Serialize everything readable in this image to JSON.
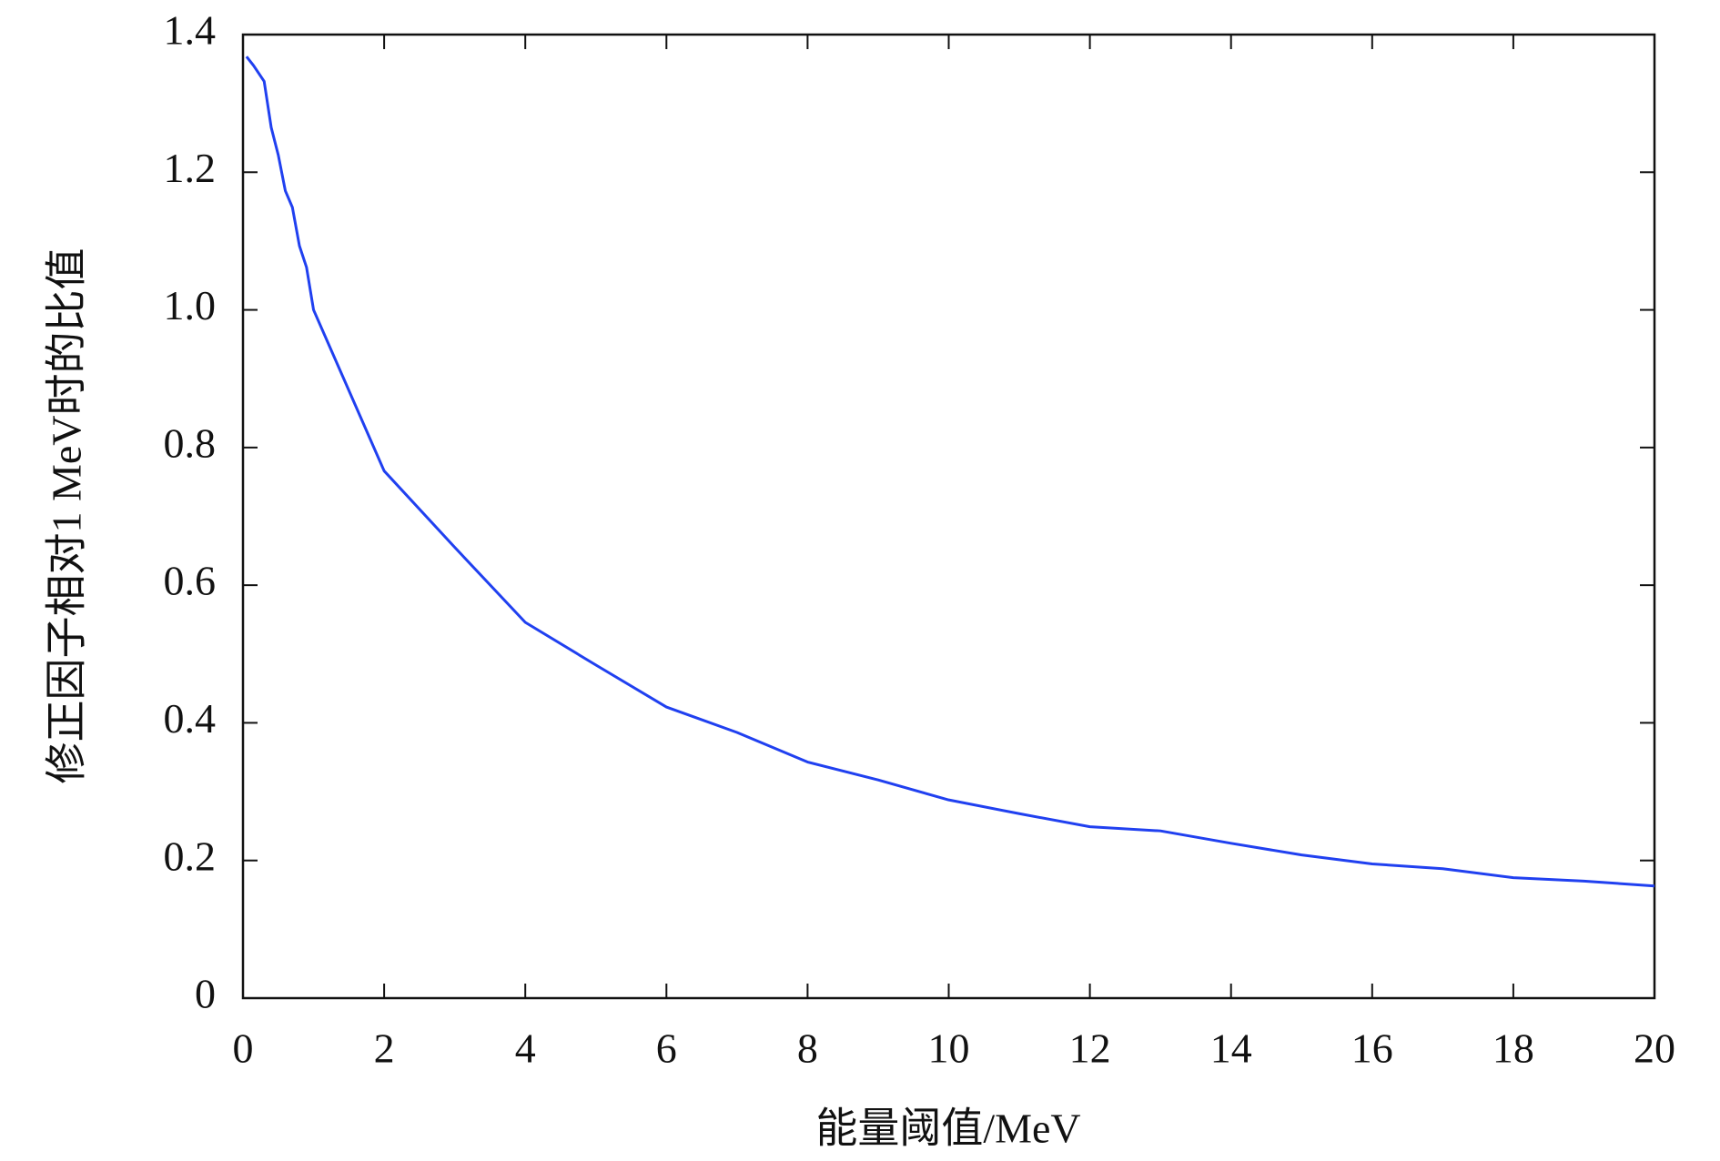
{
  "chart_data": {
    "type": "line",
    "xlabel": "能量阈值/MeV",
    "ylabel": "修正因子相对1 MeV时的比值",
    "x": [
      0.05,
      0.15,
      0.3,
      0.4,
      0.5,
      0.6,
      0.7,
      0.8,
      0.9,
      1,
      2,
      3,
      4,
      5,
      6,
      7,
      8,
      9,
      10,
      11,
      12,
      13,
      14,
      15,
      16,
      17,
      18,
      19,
      20
    ],
    "series": [
      {
        "color": "#2040f0",
        "values": [
          1.368,
          1.355,
          1.332,
          1.265,
          1.225,
          1.173,
          1.149,
          1.093,
          1.062,
          1.0,
          0.766,
          0.655,
          0.546,
          0.484,
          0.423,
          0.386,
          0.343,
          0.317,
          0.288,
          0.268,
          0.249,
          0.243,
          0.225,
          0.208,
          0.195,
          0.188,
          0.175,
          0.17,
          0.163
        ]
      }
    ],
    "xlim": [
      0,
      20
    ],
    "xticks": [
      0,
      2,
      4,
      6,
      8,
      10,
      12,
      14,
      16,
      18,
      20
    ],
    "ylim": [
      0,
      1.4
    ],
    "yticks": [
      0,
      0.2,
      0.4,
      0.6,
      0.8,
      {
        "value": 1,
        "label": "1.0"
      },
      1.2,
      1.4
    ],
    "grid": false
  }
}
